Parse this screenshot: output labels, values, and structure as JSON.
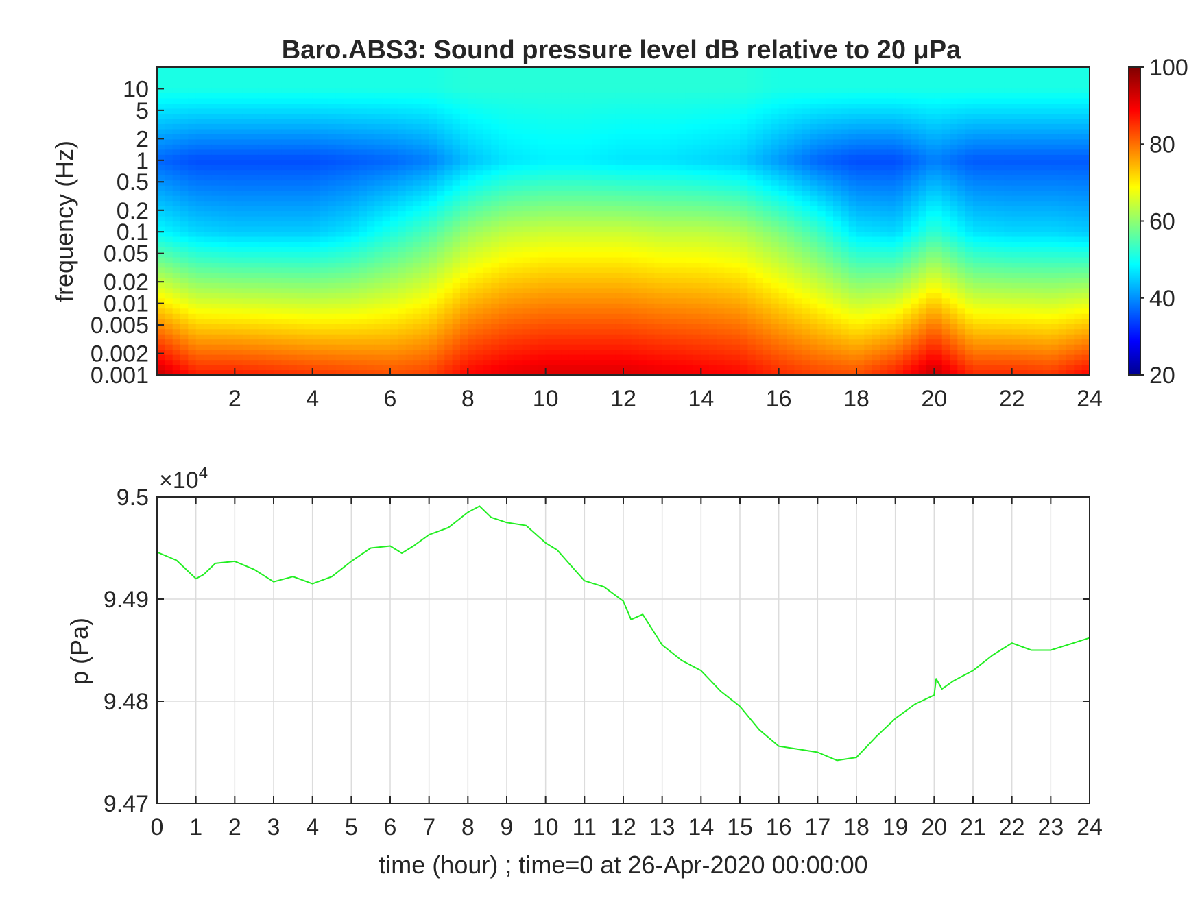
{
  "chart_data": [
    {
      "type": "heatmap",
      "title": "Baro.ABS3: Sound pressure level dB relative to 20 μPa",
      "ylabel": "frequency (Hz)",
      "xlabel": "",
      "xlim": [
        0,
        24
      ],
      "ylim": [
        0.001,
        20
      ],
      "yscale": "log",
      "x_ticks": [
        2,
        4,
        6,
        8,
        10,
        12,
        14,
        16,
        18,
        20,
        22,
        24
      ],
      "x_tick_labels": [
        "2",
        "4",
        "6",
        "8",
        "10",
        "12",
        "14",
        "16",
        "18",
        "20",
        "22",
        "24"
      ],
      "y_ticks": [
        0.001,
        0.002,
        0.005,
        0.01,
        0.02,
        0.05,
        0.1,
        0.2,
        0.5,
        1,
        2,
        5,
        10
      ],
      "y_tick_labels": [
        "0.001",
        "0.002",
        "0.005",
        "0.01",
        "0.02",
        "0.05",
        "0.1",
        "0.2",
        "0.5",
        "1",
        "2",
        "5",
        "10"
      ],
      "colorbar": {
        "colormap": "jet",
        "range": [
          20,
          100
        ],
        "ticks": [
          20,
          40,
          60,
          80,
          100
        ],
        "tick_labels": [
          "20",
          "40",
          "60",
          "80",
          "100"
        ]
      },
      "level_profile_db": {
        "time_hours": [
          0,
          1,
          2,
          3,
          4,
          5,
          6,
          7,
          8,
          9,
          10,
          11,
          12,
          13,
          14,
          15,
          16,
          17,
          18,
          19,
          20,
          21,
          22,
          23,
          24
        ],
        "db_at_0.001Hz": [
          95,
          88,
          88,
          87,
          86,
          85,
          84,
          85,
          90,
          92,
          93,
          93,
          93,
          92,
          91,
          90,
          87,
          85,
          84,
          88,
          95,
          87,
          87,
          86,
          90
        ],
        "db_at_0.1Hz": [
          50,
          47,
          46,
          46,
          46,
          48,
          52,
          56,
          62,
          65,
          66,
          66,
          66,
          65,
          65,
          64,
          60,
          55,
          48,
          47,
          54,
          48,
          47,
          47,
          46
        ],
        "db_at_1Hz": [
          38,
          36,
          36,
          36,
          36,
          37,
          38,
          40,
          45,
          48,
          49,
          49,
          48,
          48,
          47,
          46,
          42,
          38,
          36,
          36,
          40,
          37,
          37,
          37,
          37
        ],
        "db_at_10Hz": [
          52,
          52,
          52,
          52,
          52,
          52,
          52,
          52,
          53,
          53,
          53,
          53,
          53,
          53,
          53,
          53,
          52,
          52,
          52,
          52,
          52,
          52,
          52,
          52,
          52
        ]
      }
    },
    {
      "type": "line",
      "title": "",
      "ylabel": "p (Pa)",
      "xlabel": "time (hour) ; time=0 at 26-Apr-2020 00:00:00",
      "xlim": [
        0,
        24
      ],
      "ylim": [
        94700,
        95000
      ],
      "grid": true,
      "y_exponent_label": "×10",
      "y_exponent_power": "4",
      "x_ticks": [
        0,
        1,
        2,
        3,
        4,
        5,
        6,
        7,
        8,
        9,
        10,
        11,
        12,
        13,
        14,
        15,
        16,
        17,
        18,
        19,
        20,
        21,
        22,
        23,
        24
      ],
      "x_tick_labels": [
        "0",
        "1",
        "2",
        "3",
        "4",
        "5",
        "6",
        "7",
        "8",
        "9",
        "10",
        "11",
        "12",
        "13",
        "14",
        "15",
        "16",
        "17",
        "18",
        "19",
        "20",
        "21",
        "22",
        "23",
        "24"
      ],
      "y_ticks": [
        94700,
        94800,
        94900,
        95000
      ],
      "y_tick_labels": [
        "9.47",
        "9.48",
        "9.49",
        "9.5"
      ],
      "line_color": "#22ee22",
      "series": [
        {
          "x": [
            0,
            0.5,
            1,
            1.2,
            1.5,
            2,
            2.5,
            3,
            3.5,
            4,
            4.5,
            5,
            5.5,
            6,
            6.3,
            6.6,
            7,
            7.5,
            8,
            8.3,
            8.6,
            9,
            9.5,
            10,
            10.3,
            10.6,
            11,
            11.5,
            12,
            12.2,
            12.5,
            13,
            13.5,
            14,
            14.5,
            15,
            15.5,
            16,
            16.5,
            17,
            17.5,
            18,
            18.5,
            19,
            19.5,
            20,
            20.05,
            20.2,
            20.5,
            21,
            21.5,
            22,
            22.5,
            23,
            23.5,
            24
          ],
          "y": [
            94946,
            94938,
            94920,
            94924,
            94935,
            94937,
            94929,
            94917,
            94922,
            94915,
            94922,
            94937,
            94950,
            94952,
            94945,
            94952,
            94963,
            94970,
            94985,
            94991,
            94980,
            94975,
            94972,
            94955,
            94948,
            94935,
            94918,
            94912,
            94898,
            94880,
            94885,
            94855,
            94840,
            94830,
            94810,
            94795,
            94772,
            94756,
            94753,
            94750,
            94742,
            94745,
            94765,
            94783,
            94797,
            94806,
            94822,
            94812,
            94820,
            94830,
            94845,
            94857,
            94850,
            94850,
            94856,
            94862
          ]
        }
      ]
    }
  ]
}
